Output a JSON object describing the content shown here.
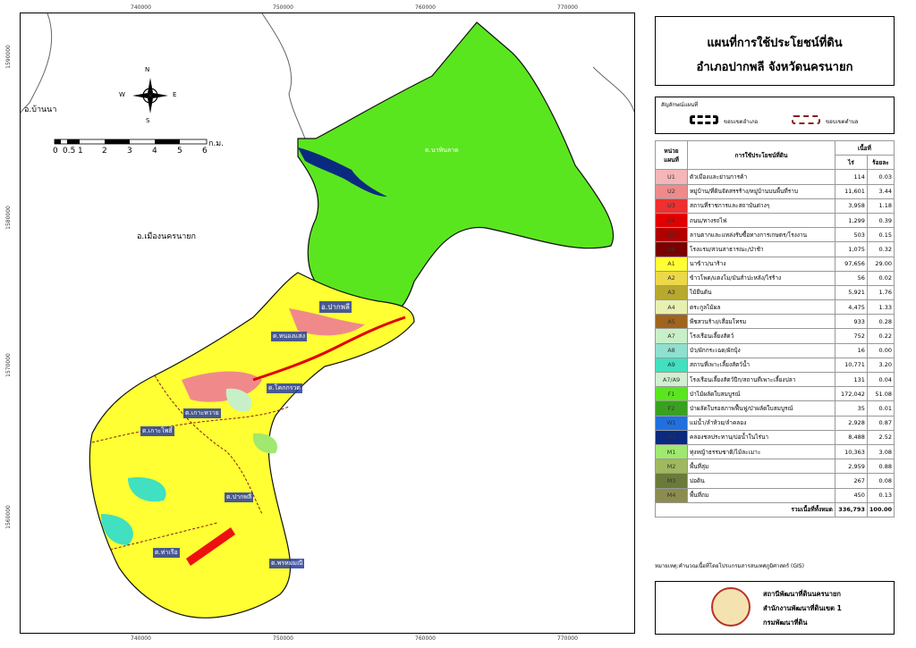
{
  "map": {
    "coords_top": [
      "740000",
      "750000",
      "760000",
      "770000"
    ],
    "coords_bottom": [
      "740000",
      "750000",
      "760000",
      "770000"
    ],
    "coords_left": [
      "1590000",
      "1580000",
      "1570000",
      "1560000"
    ],
    "coords_right": [
      "1590000",
      "1580000",
      "1570000",
      "1560000"
    ],
    "north_arrow": {
      "n": "N",
      "s": "S",
      "e": "E",
      "w": "W"
    },
    "scale_bar": {
      "labels": [
        "0",
        "0.5",
        "1",
        "2",
        "3",
        "4",
        "5",
        "6"
      ],
      "unit": "ก.ม."
    },
    "labels": {
      "ban_na": "อ.บ้านนา",
      "mueang": "อ.เมืองนครนายก",
      "pak_phli": "อ.ปากพลี",
      "na_hin_lat": "ต.นาหินลาด",
      "nong_saeng": "ต.หนองแสง",
      "ko_wai": "ต.โคกกรวด",
      "ko_pho": "ต.เกาะหวาย",
      "ko_phai": "ต.เกาะโพธิ์",
      "pak_phli_t": "ต.ปากพลี",
      "tha_ruea": "ต.ท่าเรือ",
      "phrommani": "ต.พรหมมณี"
    }
  },
  "title": {
    "line1": "แผนที่การใช้ประโยชน์ที่ดิน",
    "line2": "อำเภอปากพลี จังหวัดนครนายก"
  },
  "legend": {
    "title": "สัญลักษณ์แผนที่",
    "district_boundary": "ขอบเขตอำเภอ",
    "subdistrict_boundary": "ขอบเขตตำบล"
  },
  "table": {
    "header_code": "หน่วยแผนที่",
    "header_use": "การใช้ประโยชน์ที่ดิน",
    "header_area": "เนื้อที่",
    "header_rai": "ไร่",
    "header_pct": "ร้อยละ",
    "rows": [
      {
        "code": "U1",
        "name": "ตัวเมืองและย่านการค้า",
        "rai": "114",
        "pct": "0.03",
        "color": "#f4b6b6"
      },
      {
        "code": "U2",
        "name": "หมู่บ้าน/ที่ดินจัดสรรร้าง/หมู่บ้านบนพื้นที่ราบ",
        "rai": "11,601",
        "pct": "3.44",
        "color": "#f08a8a"
      },
      {
        "code": "U3",
        "name": "สถานที่ราชการและสถาบันต่างๆ",
        "rai": "3,958",
        "pct": "1.18",
        "color": "#ee3030"
      },
      {
        "code": "U4",
        "name": "ถนน/ทางรถไฟ",
        "rai": "1,299",
        "pct": "0.39",
        "color": "#e00000"
      },
      {
        "code": "U5",
        "name": "ลานตากและแหล่งรับซื้อทางการเกษตร/โรงงาน",
        "rai": "503",
        "pct": "0.15",
        "color": "#b00000"
      },
      {
        "code": "U6",
        "name": "โรงแรม/สวนสาธารณะ/ป่าช้า",
        "rai": "1,075",
        "pct": "0.32",
        "color": "#7a0000"
      },
      {
        "code": "A1",
        "name": "นาข้าว/นาร้าง",
        "rai": "97,656",
        "pct": "29.00",
        "color": "#ffff33"
      },
      {
        "code": "A2",
        "name": "ข้าวโพด/แตงโม/มันสำปะหลัง/ไร่ร้าง",
        "rai": "56",
        "pct": "0.02",
        "color": "#ecd84a"
      },
      {
        "code": "A3",
        "name": "ไม้ยืนต้น",
        "rai": "5,921",
        "pct": "1.76",
        "color": "#b8a830"
      },
      {
        "code": "A4",
        "name": "ตระกูลไม้ผล",
        "rai": "4,475",
        "pct": "1.33",
        "color": "#e8f0b0"
      },
      {
        "code": "A5",
        "name": "พืชสวนร้าง/เสื่อมโทรม",
        "rai": "933",
        "pct": "0.28",
        "color": "#a0641e"
      },
      {
        "code": "A7",
        "name": "โรงเรือนเลี้ยงสัตว์",
        "rai": "752",
        "pct": "0.22",
        "color": "#c8f0c8"
      },
      {
        "code": "A8",
        "name": "บัว/ผักกระเฉด/ผักบุ้ง",
        "rai": "16",
        "pct": "0.00",
        "color": "#90e0d0"
      },
      {
        "code": "A9",
        "name": "สถานที่เพาะเลี้ยงสัตว์น้ำ",
        "rai": "10,771",
        "pct": "3.20",
        "color": "#40e0c0"
      },
      {
        "code": "A7/A9",
        "name": "โรงเรือนเลี้ยงสัตว์ปีก/สถานที่เพาะเลี้ยงปลา",
        "rai": "131",
        "pct": "0.04",
        "color": "#d0f0d0"
      },
      {
        "code": "F1",
        "name": "ป่าไม้ผลัดใบสมบูรณ์",
        "rai": "172,042",
        "pct": "51.08",
        "color": "#5ae61e"
      },
      {
        "code": "F2",
        "name": "ป่าผลัดใบรอสภาพฟื้นฟู/ป่าผลัดใบสมบูรณ์",
        "rai": "35",
        "pct": "0.01",
        "color": "#3aa020"
      },
      {
        "code": "W1",
        "name": "แม่น้ำ/ลำห้วย/ลำคลอง",
        "rai": "2,928",
        "pct": "0.87",
        "color": "#2070e0"
      },
      {
        "code": "W2",
        "name": "คลองชลประทาน/บ่อน้ำในไร่นา",
        "rai": "8,488",
        "pct": "2.52",
        "color": "#0a2a80"
      },
      {
        "code": "M1",
        "name": "ทุ่งหญ้าธรรมชาติ/ไม้ละเมาะ",
        "rai": "10,363",
        "pct": "3.08",
        "color": "#a0e870"
      },
      {
        "code": "M2",
        "name": "พื้นที่ลุ่ม",
        "rai": "2,959",
        "pct": "0.88",
        "color": "#a0b860"
      },
      {
        "code": "M3",
        "name": "บ่อดิน",
        "rai": "267",
        "pct": "0.08",
        "color": "#6a7a3a"
      },
      {
        "code": "M4",
        "name": "พื้นที่ถม",
        "rai": "450",
        "pct": "0.13",
        "color": "#8c8c50"
      }
    ],
    "total_label": "รวมเนื้อที่ทั้งหมด",
    "total_rai": "336,793",
    "total_pct": "100.00"
  },
  "note": "หมายเหตุ:คำนวณเนื้อที่โดยโปรแกรมสารสนเทศภูมิศาสตร์ (GIS)",
  "agency": {
    "line1": "สถานีพัฒนาที่ดินนครนายก",
    "line2": "สำนักงานพัฒนาที่ดินเขต 1",
    "line3": "กรมพัฒนาที่ดิน"
  }
}
